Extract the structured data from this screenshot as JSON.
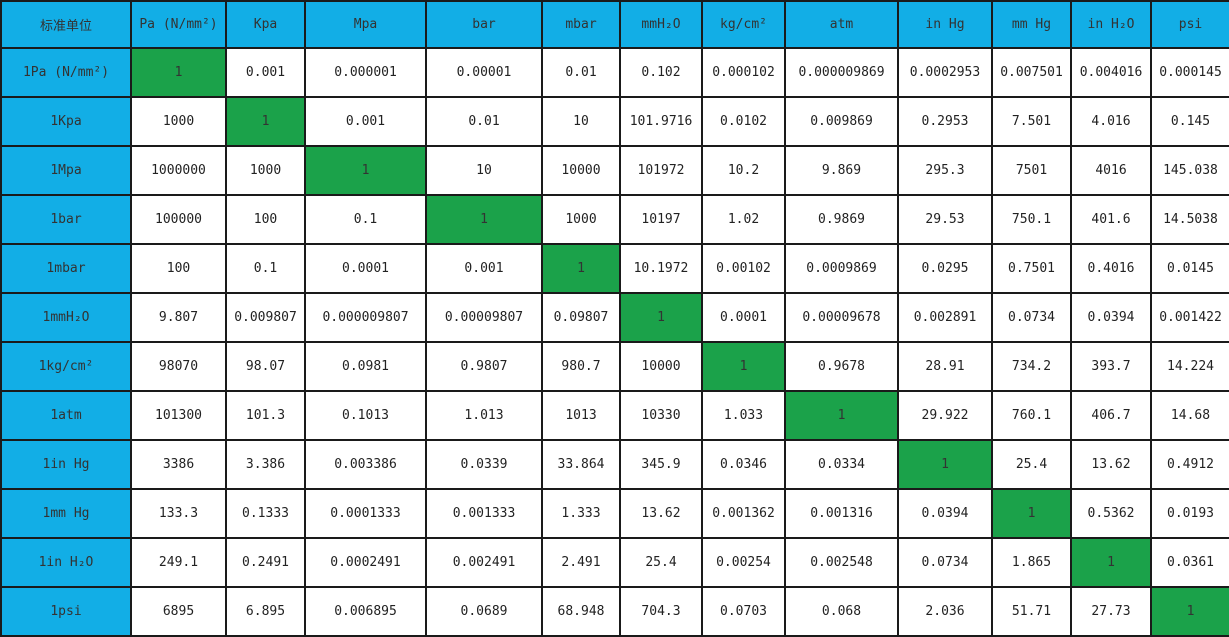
{
  "colors": {
    "header_bg": "#12aee6",
    "diagonal_bg": "#1ba24a"
  },
  "table": {
    "corner": "标准单位",
    "columns": [
      "Pa (N/mm²)",
      "Kpa",
      "Mpa",
      "bar",
      "mbar",
      "mmH₂O",
      "kg/cm²",
      "atm",
      "in Hg",
      "mm Hg",
      "in H₂O",
      "psi"
    ],
    "rows": [
      {
        "unit": "1Pa (N/mm²)",
        "values": [
          "1",
          "0.001",
          "0.000001",
          "0.00001",
          "0.01",
          "0.102",
          "0.000102",
          "0.000009869",
          "0.0002953",
          "0.007501",
          "0.004016",
          "0.000145"
        ]
      },
      {
        "unit": "1Kpa",
        "values": [
          "1000",
          "1",
          "0.001",
          "0.01",
          "10",
          "101.9716",
          "0.0102",
          "0.009869",
          "0.2953",
          "7.501",
          "4.016",
          "0.145"
        ]
      },
      {
        "unit": "1Mpa",
        "values": [
          "1000000",
          "1000",
          "1",
          "10",
          "10000",
          "101972",
          "10.2",
          "9.869",
          "295.3",
          "7501",
          "4016",
          "145.038"
        ]
      },
      {
        "unit": "1bar",
        "values": [
          "100000",
          "100",
          "0.1",
          "1",
          "1000",
          "10197",
          "1.02",
          "0.9869",
          "29.53",
          "750.1",
          "401.6",
          "14.5038"
        ]
      },
      {
        "unit": "1mbar",
        "values": [
          "100",
          "0.1",
          "0.0001",
          "0.001",
          "1",
          "10.1972",
          "0.00102",
          "0.0009869",
          "0.0295",
          "0.7501",
          "0.4016",
          "0.0145"
        ]
      },
      {
        "unit": "1mmH₂O",
        "values": [
          "9.807",
          "0.009807",
          "0.000009807",
          "0.00009807",
          "0.09807",
          "1",
          "0.0001",
          "0.00009678",
          "0.002891",
          "0.0734",
          "0.0394",
          "0.001422"
        ]
      },
      {
        "unit": "1kg/cm²",
        "values": [
          "98070",
          "98.07",
          "0.0981",
          "0.9807",
          "980.7",
          "10000",
          "1",
          "0.9678",
          "28.91",
          "734.2",
          "393.7",
          "14.224"
        ]
      },
      {
        "unit": "1atm",
        "values": [
          "101300",
          "101.3",
          "0.1013",
          "1.013",
          "1013",
          "10330",
          "1.033",
          "1",
          "29.922",
          "760.1",
          "406.7",
          "14.68"
        ]
      },
      {
        "unit": "1in Hg",
        "values": [
          "3386",
          "3.386",
          "0.003386",
          "0.0339",
          "33.864",
          "345.9",
          "0.0346",
          "0.0334",
          "1",
          "25.4",
          "13.62",
          "0.4912"
        ]
      },
      {
        "unit": "1mm Hg",
        "values": [
          "133.3",
          "0.1333",
          "0.0001333",
          "0.001333",
          "1.333",
          "13.62",
          "0.001362",
          "0.001316",
          "0.0394",
          "1",
          "0.5362",
          "0.0193"
        ]
      },
      {
        "unit": "1in H₂O",
        "values": [
          "249.1",
          "0.2491",
          "0.0002491",
          "0.002491",
          "2.491",
          "25.4",
          "0.00254",
          "0.002548",
          "0.0734",
          "1.865",
          "1",
          "0.0361"
        ]
      },
      {
        "unit": "1psi",
        "values": [
          "6895",
          "6.895",
          "0.006895",
          "0.0689",
          "68.948",
          "704.3",
          "0.0703",
          "0.068",
          "2.036",
          "51.71",
          "27.73",
          "1"
        ]
      }
    ]
  }
}
